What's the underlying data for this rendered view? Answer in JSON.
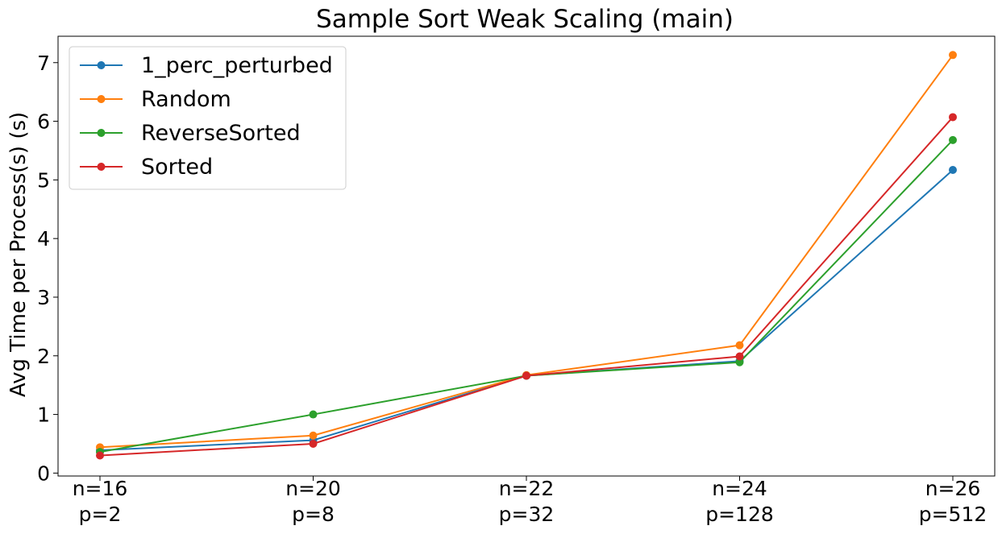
{
  "chart_data": {
    "type": "line",
    "title": "Sample Sort Weak Scaling (main)",
    "xlabel": "",
    "ylabel": "Avg Time per Process(s) (s)",
    "categories": [
      [
        "n=16",
        "p=2"
      ],
      [
        "n=20",
        "p=8"
      ],
      [
        "n=22",
        "p=32"
      ],
      [
        "n=24",
        "p=128"
      ],
      [
        "n=26",
        "p=512"
      ]
    ],
    "ylim": [
      -0.05,
      7.45
    ],
    "yticks": [
      0,
      1,
      2,
      3,
      4,
      5,
      6,
      7
    ],
    "grid": false,
    "legend_position": "top-left",
    "series": [
      {
        "name": "1_perc_perturbed",
        "color": "#1f77b4",
        "values": [
          0.39,
          0.56,
          1.66,
          1.91,
          5.17
        ]
      },
      {
        "name": "Random",
        "color": "#ff7f0e",
        "values": [
          0.44,
          0.64,
          1.67,
          2.18,
          7.13
        ]
      },
      {
        "name": "ReverseSorted",
        "color": "#2ca02c",
        "values": [
          0.36,
          1.0,
          1.66,
          1.89,
          5.68
        ]
      },
      {
        "name": "Sorted",
        "color": "#d62728",
        "values": [
          0.3,
          0.5,
          1.66,
          1.99,
          6.07
        ]
      }
    ]
  }
}
